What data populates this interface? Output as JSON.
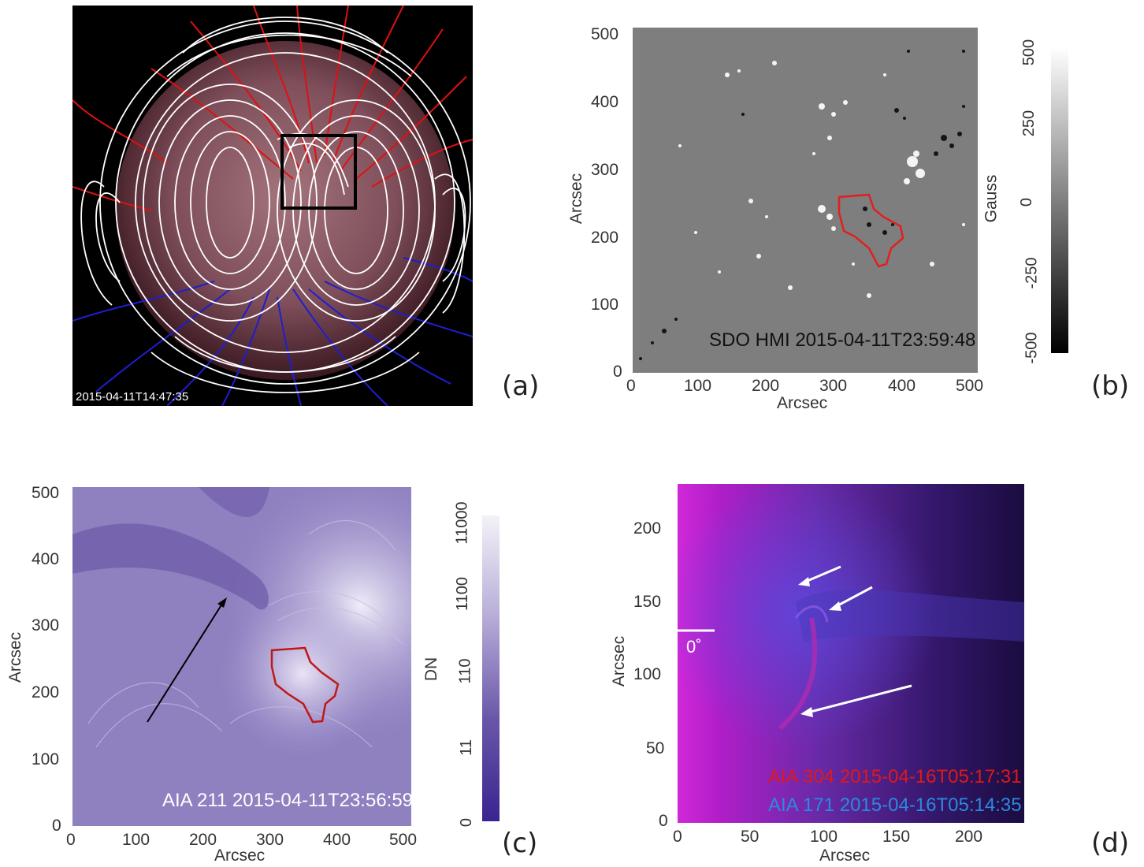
{
  "panels": {
    "a": {
      "letter": "(a)",
      "timestamp": "2015-04-11T14:47:35",
      "colors": {
        "background": "#000000",
        "disk": "#8a5a66",
        "open_positive": "#e01010",
        "open_negative": "#1e1ed0",
        "closed": "#ffffff",
        "box": "#000000"
      }
    },
    "b": {
      "letter": "(b)",
      "caption": "SDO HMI 2015-04-11T23:59:48",
      "xlabel": "Arcsec",
      "ylabel": "Arcsec",
      "xticks": [
        "0",
        "100",
        "200",
        "300",
        "400",
        "500"
      ],
      "yticks": [
        "0",
        "100",
        "200",
        "300",
        "400",
        "500"
      ],
      "colorbar_label": "Gauss",
      "colorbar_ticks": [
        "500",
        "250",
        "0",
        "-250",
        "-500"
      ],
      "colors": {
        "image": "#7e7e7e",
        "contour": "#e02020"
      }
    },
    "c": {
      "letter": "(c)",
      "caption": "AIA 211 2015-04-11T23:56:59",
      "xlabel": "Arcsec",
      "ylabel": "Arcsec",
      "xticks": [
        "0",
        "100",
        "200",
        "300",
        "400",
        "500"
      ],
      "yticks": [
        "0",
        "100",
        "200",
        "300",
        "400",
        "500"
      ],
      "colorbar_label": "DN",
      "colorbar_ticks": [
        "11000",
        "1100",
        "110",
        "11",
        "0"
      ],
      "colors": {
        "image": "#8f80c0",
        "contour": "#c01818",
        "arrow": "#000000"
      }
    },
    "d": {
      "letter": "(d)",
      "caption_red": "AIA 304 2015-04-16T05:17:31",
      "caption_blue": "AIA 171 2015-04-16T05:14:35",
      "angle_label": "0˚",
      "xlabel": "Arcsec",
      "ylabel": "Arcsec",
      "xticks": [
        "0",
        "50",
        "100",
        "150",
        "200"
      ],
      "yticks": [
        "0",
        "50",
        "100",
        "150",
        "200"
      ],
      "colors": {
        "image": "#3a1a6a",
        "red_caption": "#e01818",
        "blue_caption": "#2a8ae0",
        "arrow": "#ffffff"
      }
    }
  }
}
